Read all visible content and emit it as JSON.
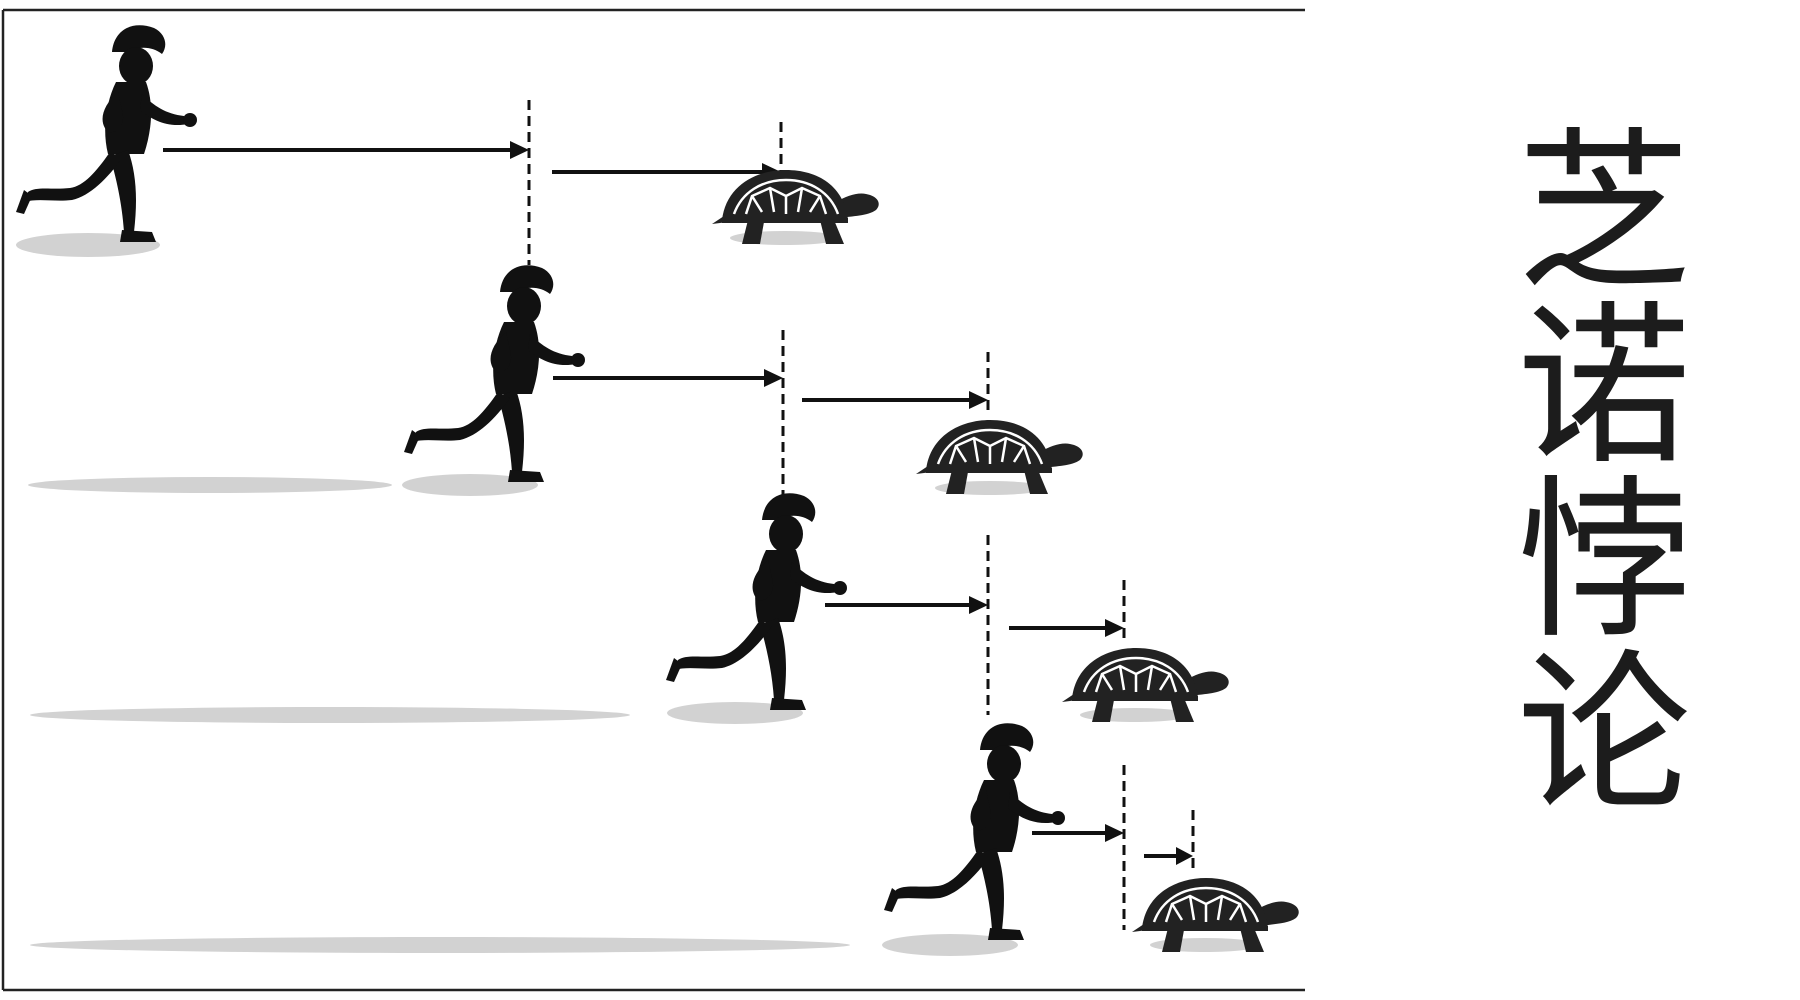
{
  "title": "芝诺悖论",
  "colors": {
    "ink": "#111111",
    "shadow": "#d2d2d2",
    "frame": "#222222",
    "shell": "#222222",
    "shell_pattern": "#ffffff"
  },
  "figures": {
    "runner": "runner-silhouette-icon",
    "tortoise": "tortoise-icon"
  },
  "steps": 4
}
